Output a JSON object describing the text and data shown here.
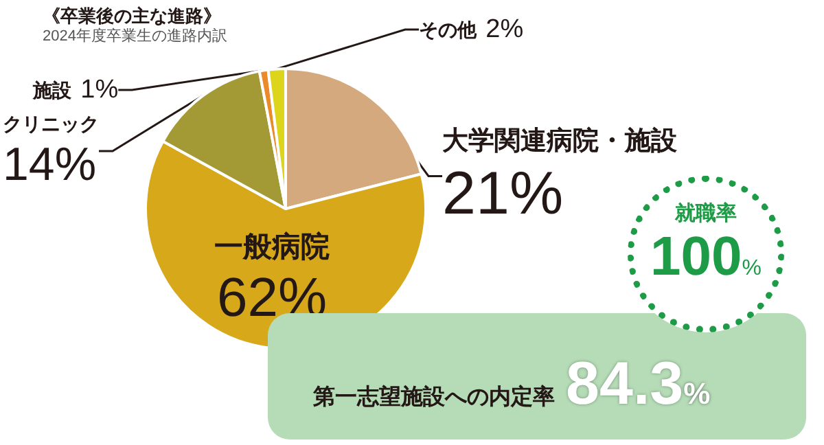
{
  "chart_data": {
    "type": "pie",
    "title": "《卒業後の主な進路》",
    "subtitle": "2024年度卒業生の進路内訳",
    "categories": [
      "大学関連病院・施設",
      "一般病院",
      "クリニック",
      "施設",
      "その他"
    ],
    "values": [
      21,
      62,
      14,
      1,
      2
    ],
    "colors": [
      "#d4a97e",
      "#d6a81a",
      "#a39a35",
      "#ec8a2a",
      "#dcd51c"
    ],
    "value_labels": [
      "21%",
      "62%",
      "14%",
      "1%",
      "2%"
    ],
    "legend": false,
    "annotations": [
      "就職率\n100%",
      "第一志望施設への内定率84.3%"
    ]
  }
}
